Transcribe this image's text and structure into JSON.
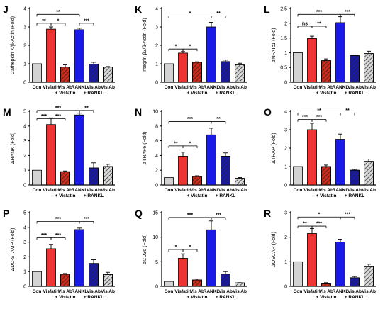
{
  "categories": [
    "Con",
    "Visfatin",
    "Vis Ab\n+ Visfatin",
    "RANKL",
    "Vis Ab\n+ RANKL",
    "Vis Ab"
  ],
  "colors": [
    "#d3d3d3",
    "#ee3333",
    "#cc2a1a",
    "#1a1ae6",
    "#1a1aaa",
    "#d8d8d8"
  ],
  "hatched": [
    false,
    false,
    true,
    false,
    true,
    true
  ],
  "chart_data": [
    {
      "type": "bar",
      "letter": "J",
      "ylabel": "Cathepsin K/β-Actin (Fold)",
      "ylim": [
        0,
        4
      ],
      "ticks": [
        0,
        1,
        2,
        3,
        4
      ],
      "values": [
        1.0,
        2.88,
        0.82,
        2.85,
        0.98,
        0.82
      ],
      "errors": [
        0,
        0.12,
        0.12,
        0.08,
        0.1,
        0.03
      ],
      "sig": [
        {
          "from": 0,
          "to": 1,
          "y": 3.2,
          "label": "**"
        },
        {
          "from": 1,
          "to": 2,
          "y": 3.2,
          "label": "*"
        },
        {
          "from": 0,
          "to": 3,
          "y": 3.68,
          "label": "**"
        },
        {
          "from": 3,
          "to": 4,
          "y": 3.2,
          "label": "***"
        }
      ]
    },
    {
      "type": "bar",
      "letter": "K",
      "ylabel": "Integrin β3/β-Actin (Fold)",
      "ylim": [
        0,
        4
      ],
      "ticks": [
        0,
        1,
        2,
        3,
        4
      ],
      "values": [
        1.0,
        1.58,
        1.08,
        3.0,
        1.12,
        0.95
      ],
      "errors": [
        0,
        0.08,
        0.03,
        0.25,
        0.08,
        0.08
      ],
      "sig": [
        {
          "from": 0,
          "to": 1,
          "y": 1.8,
          "label": "*"
        },
        {
          "from": 1,
          "to": 2,
          "y": 1.8,
          "label": "*"
        },
        {
          "from": 0,
          "to": 3,
          "y": 3.6,
          "label": "*"
        },
        {
          "from": 3,
          "to": 4,
          "y": 3.6,
          "label": "**"
        }
      ]
    },
    {
      "type": "bar",
      "letter": "L",
      "ylabel": "ΔNFATc1 (Fold)",
      "ylim": [
        0,
        2.5
      ],
      "ticks": [
        0,
        0.5,
        1,
        1.5,
        2,
        2.5
      ],
      "values": [
        1.0,
        1.48,
        0.73,
        2.02,
        0.9,
        0.97
      ],
      "errors": [
        0,
        0.08,
        0.06,
        0.2,
        0.02,
        0.08
      ],
      "sig": [
        {
          "from": 0,
          "to": 1,
          "y": 1.9,
          "label": "ns"
        },
        {
          "from": 1,
          "to": 2,
          "y": 1.9,
          "label": "**"
        },
        {
          "from": 0,
          "to": 3,
          "y": 2.3,
          "label": "***"
        },
        {
          "from": 3,
          "to": 4,
          "y": 2.3,
          "label": "***"
        }
      ]
    },
    {
      "type": "bar",
      "letter": "M",
      "ylabel": "ΔRANK (Fold)",
      "ylim": [
        0,
        5
      ],
      "ticks": [
        0,
        1,
        2,
        3,
        4,
        5
      ],
      "values": [
        1.0,
        4.1,
        0.9,
        4.75,
        1.15,
        1.25
      ],
      "errors": [
        0,
        0.45,
        0.05,
        0.12,
        0.35,
        0.15
      ],
      "sig": [
        {
          "from": 0,
          "to": 1,
          "y": 4.5,
          "label": "***"
        },
        {
          "from": 1,
          "to": 2,
          "y": 4.5,
          "label": "***"
        },
        {
          "from": 0,
          "to": 3,
          "y": 5.05,
          "label": "***"
        },
        {
          "from": 3,
          "to": 4,
          "y": 5.05,
          "label": "**"
        }
      ]
    },
    {
      "type": "bar",
      "letter": "N",
      "ylabel": "ΔTRAF6 (Fold)",
      "ylim": [
        0,
        10
      ],
      "ticks": [
        0,
        2,
        4,
        6,
        8,
        10
      ],
      "values": [
        1.0,
        3.9,
        1.15,
        6.8,
        3.9,
        0.9
      ],
      "errors": [
        0,
        0.55,
        0.1,
        0.9,
        0.45,
        0.1
      ],
      "sig": [
        {
          "from": 0,
          "to": 1,
          "y": 5.3,
          "label": "**"
        },
        {
          "from": 1,
          "to": 2,
          "y": 5.3,
          "label": "*"
        },
        {
          "from": 0,
          "to": 3,
          "y": 8.6,
          "label": "***"
        },
        {
          "from": 3,
          "to": 4,
          "y": 8.6,
          "label": "**"
        }
      ]
    },
    {
      "type": "bar",
      "letter": "O",
      "ylabel": "ΔTRAP (Fold)",
      "ylim": [
        0,
        4
      ],
      "ticks": [
        0,
        1,
        2,
        3,
        4
      ],
      "values": [
        1.0,
        3.0,
        1.0,
        2.48,
        0.8,
        1.28
      ],
      "errors": [
        0,
        0.35,
        0.08,
        0.28,
        0.05,
        0.12
      ],
      "sig": [
        {
          "from": 0,
          "to": 1,
          "y": 3.55,
          "label": "***"
        },
        {
          "from": 1,
          "to": 2,
          "y": 3.55,
          "label": "***"
        },
        {
          "from": 0,
          "to": 3,
          "y": 3.9,
          "label": "**"
        },
        {
          "from": 3,
          "to": 4,
          "y": 3.9,
          "label": "**"
        }
      ]
    },
    {
      "type": "bar",
      "letter": "P",
      "ylabel": "ΔDC-STAMP (Fold)",
      "ylim": [
        0,
        5
      ],
      "ticks": [
        0,
        1,
        2,
        3,
        4,
        5
      ],
      "values": [
        1.0,
        2.55,
        0.82,
        3.85,
        1.55,
        0.8
      ],
      "errors": [
        0,
        0.3,
        0.05,
        0.1,
        0.25,
        0.15
      ],
      "sig": [
        {
          "from": 0,
          "to": 1,
          "y": 3.3,
          "label": "***"
        },
        {
          "from": 1,
          "to": 2,
          "y": 3.3,
          "label": "***"
        },
        {
          "from": 0,
          "to": 3,
          "y": 4.4,
          "label": "***"
        },
        {
          "from": 3,
          "to": 4,
          "y": 4.4,
          "label": "***"
        }
      ]
    },
    {
      "type": "bar",
      "letter": "Q",
      "ylabel": "ΔCD36 (Fold)",
      "ylim": [
        0,
        15
      ],
      "ticks": [
        0,
        5,
        10,
        15
      ],
      "values": [
        1.0,
        5.7,
        1.3,
        11.5,
        2.5,
        0.7
      ],
      "errors": [
        0,
        0.9,
        0.2,
        1.8,
        0.5,
        0.05
      ],
      "sig": [
        {
          "from": 0,
          "to": 1,
          "y": 7.5,
          "label": "*"
        },
        {
          "from": 1,
          "to": 2,
          "y": 7.5,
          "label": "*"
        },
        {
          "from": 0,
          "to": 3,
          "y": 14.0,
          "label": "***"
        },
        {
          "from": 3,
          "to": 4,
          "y": 14.0,
          "label": "***"
        }
      ]
    },
    {
      "type": "bar",
      "letter": "R",
      "ylabel": "ΔOSCAR (Fold)",
      "ylim": [
        0,
        3
      ],
      "ticks": [
        0,
        1,
        2,
        3
      ],
      "values": [
        1.0,
        2.15,
        0.1,
        1.8,
        0.35,
        0.8
      ],
      "errors": [
        0,
        0.2,
        0.05,
        0.12,
        0.05,
        0.1
      ],
      "sig": [
        {
          "from": 0,
          "to": 1,
          "y": 2.45,
          "label": "**"
        },
        {
          "from": 1,
          "to": 2,
          "y": 2.45,
          "label": "***"
        },
        {
          "from": 0,
          "to": 3,
          "y": 2.82,
          "label": "*"
        },
        {
          "from": 3,
          "to": 4,
          "y": 2.82,
          "label": "***"
        }
      ]
    }
  ]
}
